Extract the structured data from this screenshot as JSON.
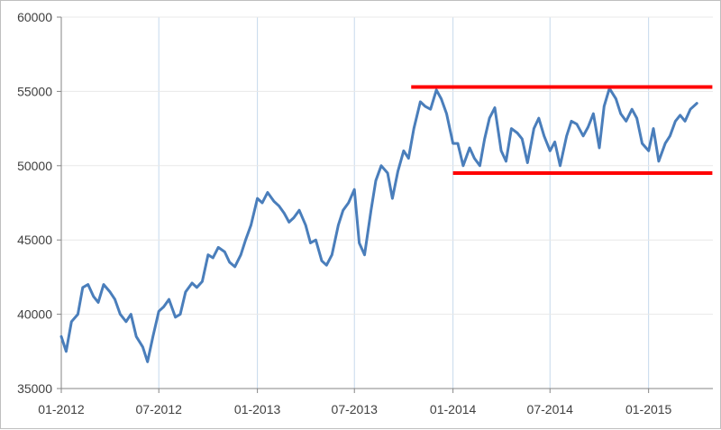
{
  "chart_data": {
    "type": "line",
    "title": "",
    "xlabel": "",
    "ylabel": "",
    "x_range": [
      "2012-01-01",
      "2015-05-01"
    ],
    "ylim": [
      35000,
      60000
    ],
    "x_tick_labels": [
      "01-2012",
      "07-2012",
      "01-2013",
      "07-2013",
      "01-2014",
      "07-2014",
      "01-2015"
    ],
    "x_tick_dates": [
      "2012-01-01",
      "2012-07-01",
      "2013-01-01",
      "2013-07-01",
      "2014-01-01",
      "2014-07-01",
      "2015-01-01"
    ],
    "y_ticks": [
      35000,
      40000,
      45000,
      50000,
      55000,
      60000
    ],
    "y_tick_labels": [
      "35000",
      "40000",
      "45000",
      "50000",
      "55000",
      "60000"
    ],
    "grid": {
      "vertical": true,
      "horizontal": true
    },
    "legend": "none",
    "colors": {
      "series": "#4a7ebb",
      "channel": "#ff0000",
      "grid_vertical": "#c6d9ec",
      "grid_horizontal": "#e8e8e8",
      "axis": "#868686"
    },
    "series": [
      {
        "x": [
          "2012-01-01",
          "2012-01-10",
          "2012-01-20",
          "2012-02-01",
          "2012-02-10",
          "2012-02-20",
          "2012-03-01",
          "2012-03-10",
          "2012-03-20",
          "2012-04-01",
          "2012-04-10",
          "2012-04-20",
          "2012-05-01",
          "2012-05-10",
          "2012-05-20",
          "2012-06-01",
          "2012-06-10",
          "2012-06-20",
          "2012-07-01",
          "2012-07-10",
          "2012-07-20",
          "2012-08-01",
          "2012-08-10",
          "2012-08-20",
          "2012-09-01",
          "2012-09-10",
          "2012-09-20",
          "2012-10-01",
          "2012-10-10",
          "2012-10-20",
          "2012-11-01",
          "2012-11-10",
          "2012-11-20",
          "2012-12-01",
          "2012-12-10",
          "2012-12-20",
          "2013-01-01",
          "2013-01-10",
          "2013-01-20",
          "2013-02-01",
          "2013-02-10",
          "2013-02-20",
          "2013-03-01",
          "2013-03-10",
          "2013-03-20",
          "2013-04-01",
          "2013-04-10",
          "2013-04-20",
          "2013-05-01",
          "2013-05-10",
          "2013-05-20",
          "2013-06-01",
          "2013-06-10",
          "2013-06-20",
          "2013-07-01",
          "2013-07-10",
          "2013-07-20",
          "2013-08-01",
          "2013-08-10",
          "2013-08-20",
          "2013-09-01",
          "2013-09-10",
          "2013-09-20",
          "2013-10-01",
          "2013-10-10",
          "2013-10-20",
          "2013-11-01",
          "2013-11-10",
          "2013-11-20",
          "2013-12-01",
          "2013-12-10",
          "2013-12-20",
          "2014-01-01",
          "2014-01-10",
          "2014-01-20",
          "2014-02-01",
          "2014-02-10",
          "2014-02-20",
          "2014-03-01",
          "2014-03-10",
          "2014-03-20",
          "2014-04-01",
          "2014-04-10",
          "2014-04-20",
          "2014-05-01",
          "2014-05-10",
          "2014-05-20",
          "2014-06-01",
          "2014-06-10",
          "2014-06-20",
          "2014-07-01",
          "2014-07-10",
          "2014-07-20",
          "2014-08-01",
          "2014-08-10",
          "2014-08-20",
          "2014-09-01",
          "2014-09-10",
          "2014-09-20",
          "2014-10-01",
          "2014-10-10",
          "2014-10-20",
          "2014-11-01",
          "2014-11-10",
          "2014-11-20",
          "2014-12-01",
          "2014-12-10",
          "2014-12-20",
          "2015-01-01",
          "2015-01-10",
          "2015-01-20",
          "2015-02-01",
          "2015-02-10",
          "2015-02-20",
          "2015-03-01",
          "2015-03-10",
          "2015-03-20",
          "2015-04-01"
        ],
        "values": [
          38500,
          37500,
          39500,
          40000,
          41800,
          42000,
          41200,
          40800,
          42000,
          41500,
          41000,
          40000,
          39500,
          40000,
          38500,
          37800,
          36800,
          38500,
          40200,
          40500,
          41000,
          39800,
          40000,
          41500,
          42100,
          41800,
          42200,
          44000,
          43800,
          44500,
          44200,
          43500,
          43200,
          44000,
          45000,
          46000,
          47800,
          47500,
          48200,
          47600,
          47300,
          46800,
          46200,
          46500,
          47000,
          46000,
          44800,
          45000,
          43600,
          43300,
          44000,
          46000,
          47000,
          47500,
          48400,
          44800,
          44000,
          47000,
          49000,
          50000,
          49500,
          47800,
          49600,
          51000,
          50500,
          52500,
          54300,
          54000,
          53800,
          55100,
          54500,
          53500,
          51500,
          51500,
          50000,
          51200,
          50500,
          50000,
          51800,
          53200,
          53900,
          51000,
          50300,
          52500,
          52200,
          51800,
          50200,
          52500,
          53200,
          52000,
          51000,
          51600,
          50000,
          52000,
          53000,
          52800,
          52000,
          52600,
          53500,
          51200,
          54000,
          55200,
          54500,
          53500,
          53000,
          53800,
          53200,
          51500,
          51000,
          52500,
          50300,
          51500,
          52000,
          53000,
          53400,
          53000,
          53800,
          54200
        ]
      }
    ],
    "channel_lines": [
      {
        "value": 55300,
        "x_start": "2013-10-15",
        "x_end": "2015-04-30"
      },
      {
        "value": 49500,
        "x_start": "2014-01-01",
        "x_end": "2015-04-30"
      }
    ]
  }
}
